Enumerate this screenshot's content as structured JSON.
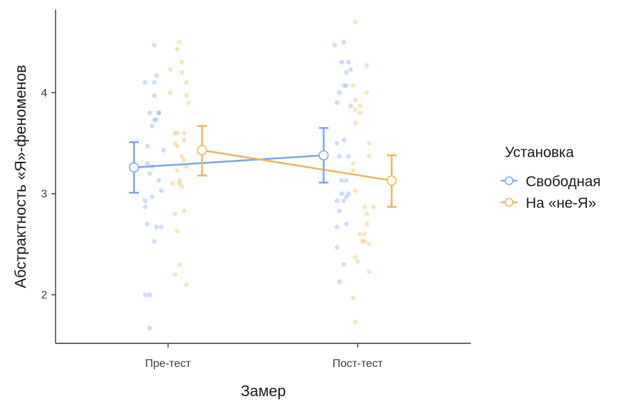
{
  "chart_data": {
    "type": "scatter",
    "title": "",
    "xlabel": "Замер",
    "ylabel": "Абстрактность «Я»-феноменов",
    "categories": [
      "Пре-тест",
      "Пост-тест"
    ],
    "ylim": [
      1.52,
      4.82
    ],
    "yticks": [
      2,
      3,
      4
    ],
    "grid": false,
    "legend": {
      "title": "Установка",
      "position": "right",
      "items": [
        "Свободная",
        "На «не-Я»"
      ]
    },
    "series": [
      {
        "name": "Свободная",
        "color": "#7ba7e6",
        "means": [
          3.26,
          3.38
        ],
        "ci_low": [
          3.01,
          3.11
        ],
        "ci_high": [
          3.51,
          3.65
        ],
        "points": [
          [
            [
              -0.1,
              2.0
            ],
            [
              -0.08,
              1.67
            ],
            [
              -0.08,
              2.0
            ],
            [
              -0.06,
              2.53
            ],
            [
              -0.09,
              2.7
            ],
            [
              -0.1,
              2.87
            ],
            [
              -0.1,
              2.93
            ],
            [
              -0.07,
              2.97
            ],
            [
              -0.03,
              3.03
            ],
            [
              -0.05,
              2.67
            ],
            [
              -0.03,
              2.67
            ],
            [
              -0.08,
              3.2
            ],
            [
              -0.07,
              3.27
            ],
            [
              -0.09,
              3.3
            ],
            [
              -0.04,
              3.13
            ],
            [
              -0.09,
              3.47
            ],
            [
              -0.02,
              3.43
            ],
            [
              -0.07,
              3.67
            ],
            [
              -0.06,
              3.73
            ],
            [
              -0.08,
              3.8
            ],
            [
              -0.04,
              3.8
            ],
            [
              -0.06,
              3.97
            ],
            [
              -0.05,
              3.73
            ],
            [
              -0.04,
              3.8
            ],
            [
              -0.1,
              4.1
            ],
            [
              -0.06,
              4.1
            ],
            [
              -0.05,
              4.17
            ],
            [
              -0.06,
              4.47
            ]
          ],
          [
            [
              -0.08,
              2.13
            ],
            [
              -0.06,
              2.3
            ],
            [
              -0.09,
              2.47
            ],
            [
              -0.09,
              2.67
            ],
            [
              -0.08,
              2.83
            ],
            [
              -0.09,
              2.93
            ],
            [
              -0.06,
              2.93
            ],
            [
              -0.05,
              2.97
            ],
            [
              -0.07,
              3.0
            ],
            [
              -0.05,
              2.7
            ],
            [
              -0.04,
              3.0
            ],
            [
              -0.07,
              3.13
            ],
            [
              -0.05,
              3.13
            ],
            [
              -0.08,
              3.37
            ],
            [
              -0.04,
              3.37
            ],
            [
              -0.09,
              3.5
            ],
            [
              -0.06,
              3.53
            ],
            [
              -0.03,
              3.87
            ],
            [
              -0.09,
              3.9
            ],
            [
              -0.08,
              4.0
            ],
            [
              -0.06,
              4.07
            ],
            [
              -0.05,
              4.07
            ],
            [
              -0.05,
              4.2
            ],
            [
              -0.03,
              4.23
            ],
            [
              -0.04,
              4.3
            ],
            [
              -0.07,
              4.3
            ],
            [
              -0.1,
              4.47
            ],
            [
              -0.06,
              4.5
            ]
          ]
        ]
      },
      {
        "name": "На «не-Я»",
        "color": "#e8b75c",
        "means": [
          3.43,
          3.13
        ],
        "ci_low": [
          3.18,
          2.87
        ],
        "ci_high": [
          3.67,
          3.38
        ],
        "points": [
          [
            [
              0.03,
              2.2
            ],
            [
              0.05,
              2.3
            ],
            [
              0.08,
              2.1
            ],
            [
              0.04,
              2.63
            ],
            [
              0.03,
              2.8
            ],
            [
              0.07,
              2.83
            ],
            [
              0.06,
              3.07
            ],
            [
              0.05,
              3.1
            ],
            [
              0.02,
              3.1
            ],
            [
              0.05,
              3.13
            ],
            [
              0.04,
              3.23
            ],
            [
              0.08,
              3.27
            ],
            [
              0.06,
              3.37
            ],
            [
              0.07,
              3.33
            ],
            [
              0.04,
              3.47
            ],
            [
              0.03,
              3.5
            ],
            [
              0.07,
              3.53
            ],
            [
              0.04,
              3.6
            ],
            [
              0.03,
              3.6
            ],
            [
              0.07,
              3.6
            ],
            [
              0.09,
              3.9
            ],
            [
              0.08,
              3.97
            ],
            [
              0.01,
              4.0
            ],
            [
              0.08,
              4.1
            ],
            [
              0.06,
              4.2
            ],
            [
              0.06,
              4.3
            ],
            [
              0.01,
              4.23
            ],
            [
              0.04,
              4.43
            ],
            [
              0.05,
              4.5
            ]
          ],
          [
            [
              -0.01,
              1.73
            ],
            [
              -0.02,
              1.97
            ],
            [
              -0.01,
              2.37
            ],
            [
              0.0,
              2.33
            ],
            [
              0.02,
              2.53
            ],
            [
              0.03,
              2.53
            ],
            [
              0.05,
              2.5
            ],
            [
              0.05,
              2.23
            ],
            [
              0.03,
              2.6
            ],
            [
              0.01,
              2.6
            ],
            [
              0.04,
              2.7
            ],
            [
              0.04,
              2.8
            ],
            [
              0.07,
              2.87
            ],
            [
              0.03,
              2.87
            ],
            [
              -0.01,
              3.03
            ],
            [
              -0.02,
              3.23
            ],
            [
              0.05,
              3.37
            ],
            [
              0.05,
              3.5
            ],
            [
              -0.02,
              3.3
            ],
            [
              0.01,
              3.8
            ],
            [
              -0.01,
              3.7
            ],
            [
              -0.01,
              3.83
            ],
            [
              0.01,
              3.87
            ],
            [
              -0.01,
              3.93
            ],
            [
              0.04,
              4.0
            ],
            [
              -0.02,
              4.07
            ],
            [
              0.04,
              4.27
            ],
            [
              -0.01,
              4.7
            ]
          ]
        ]
      }
    ]
  }
}
